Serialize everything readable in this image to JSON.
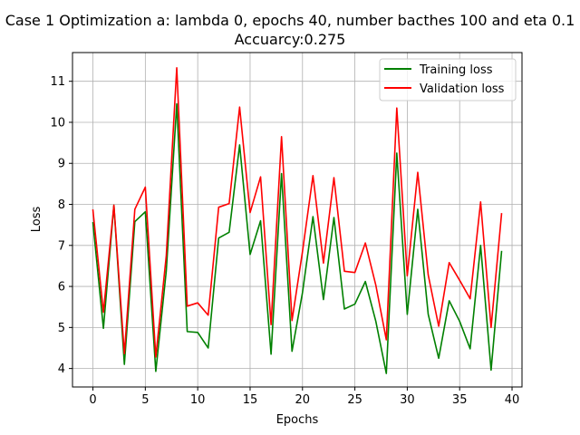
{
  "chart_data": {
    "type": "line",
    "title": "Case 1 Optimization a: lambda 0, epochs 40, number bacthes 100 and eta 0.1",
    "subtitle": "Accuarcy:0.275",
    "xlabel": "Epochs",
    "ylabel": "Loss",
    "xlim": [
      -1.95,
      40.95
    ],
    "ylim": [
      3.55,
      11.7
    ],
    "xticks": [
      0,
      5,
      10,
      15,
      20,
      25,
      30,
      35,
      40
    ],
    "yticks": [
      4,
      5,
      6,
      7,
      8,
      9,
      10,
      11
    ],
    "grid": true,
    "legend_position": "top-right",
    "x": [
      0,
      1,
      2,
      3,
      4,
      5,
      6,
      7,
      8,
      9,
      10,
      11,
      12,
      13,
      14,
      15,
      16,
      17,
      18,
      19,
      20,
      21,
      22,
      23,
      24,
      25,
      26,
      27,
      28,
      29,
      30,
      31,
      32,
      33,
      34,
      35,
      36,
      37,
      38,
      39
    ],
    "series": [
      {
        "name": "Training loss",
        "color": "#008000",
        "values": [
          7.55,
          4.98,
          7.98,
          4.1,
          7.58,
          7.82,
          3.93,
          6.38,
          10.45,
          4.9,
          4.88,
          4.5,
          7.18,
          7.32,
          9.45,
          6.78,
          7.6,
          4.35,
          8.75,
          4.42,
          5.85,
          7.7,
          5.68,
          7.68,
          5.45,
          5.57,
          6.12,
          5.15,
          3.88,
          9.25,
          5.32,
          7.88,
          5.32,
          4.25,
          5.65,
          5.15,
          4.48,
          7.0,
          3.96,
          6.85
        ]
      },
      {
        "name": "Validation loss",
        "color": "#ff0000",
        "values": [
          7.86,
          5.37,
          7.98,
          4.36,
          7.88,
          8.42,
          4.28,
          6.75,
          11.33,
          5.52,
          5.6,
          5.3,
          7.93,
          8.02,
          10.37,
          7.8,
          8.67,
          5.07,
          9.65,
          5.17,
          6.85,
          8.7,
          6.57,
          8.65,
          6.37,
          6.34,
          7.06,
          6.03,
          4.7,
          10.35,
          6.26,
          8.78,
          6.28,
          5.03,
          6.58,
          6.15,
          5.7,
          8.06,
          5.0,
          7.77
        ]
      }
    ]
  }
}
